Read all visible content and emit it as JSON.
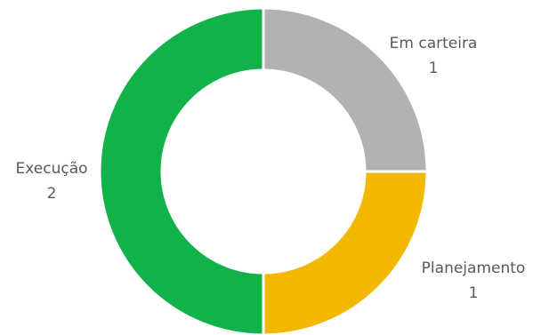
{
  "chart_data": {
    "type": "pie",
    "variant": "doughnut",
    "categories": [
      "Em carteira",
      "Planejamento",
      "Execução"
    ],
    "values": [
      1,
      1,
      2
    ],
    "colors": [
      "#b2b2b2",
      "#f2b800",
      "#12b24a"
    ],
    "data_labels": [
      "1",
      "1",
      "2"
    ],
    "title": "",
    "legend": "none",
    "start_angle_deg": 0,
    "direction": "clockwise"
  }
}
